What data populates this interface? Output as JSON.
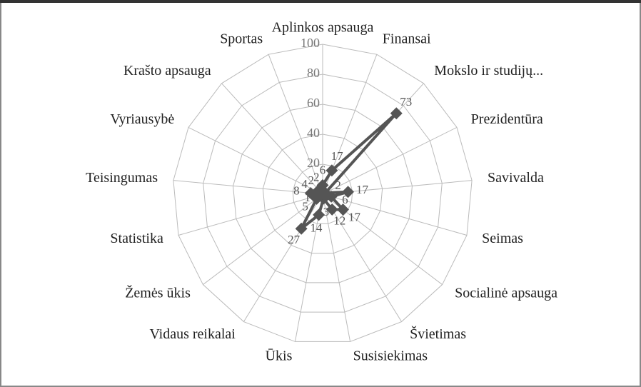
{
  "chart_data": {
    "type": "radar",
    "categories": [
      "Aplinkos apsauga",
      "Finansai",
      "Mokslo ir studijų...",
      "Prezidentūra",
      "Savivalda",
      "Seimas",
      "Socialinė apsauga",
      "Švietimas",
      "Susisiekimas",
      "Ūkis",
      "Vidaus reikalai",
      "Žemės ūkis",
      "Statistika",
      "Teisingumas",
      "Vyriausybė",
      "Krašto apsauga",
      "Sportas"
    ],
    "values": [
      6,
      17,
      73,
      2,
      17,
      6,
      17,
      12,
      3,
      14,
      27,
      5,
      1,
      8,
      4,
      2,
      2
    ],
    "color": "#555555",
    "ylim": [
      0,
      100
    ],
    "yticks": [
      0,
      20,
      40,
      60,
      80,
      100
    ],
    "grid": true
  }
}
